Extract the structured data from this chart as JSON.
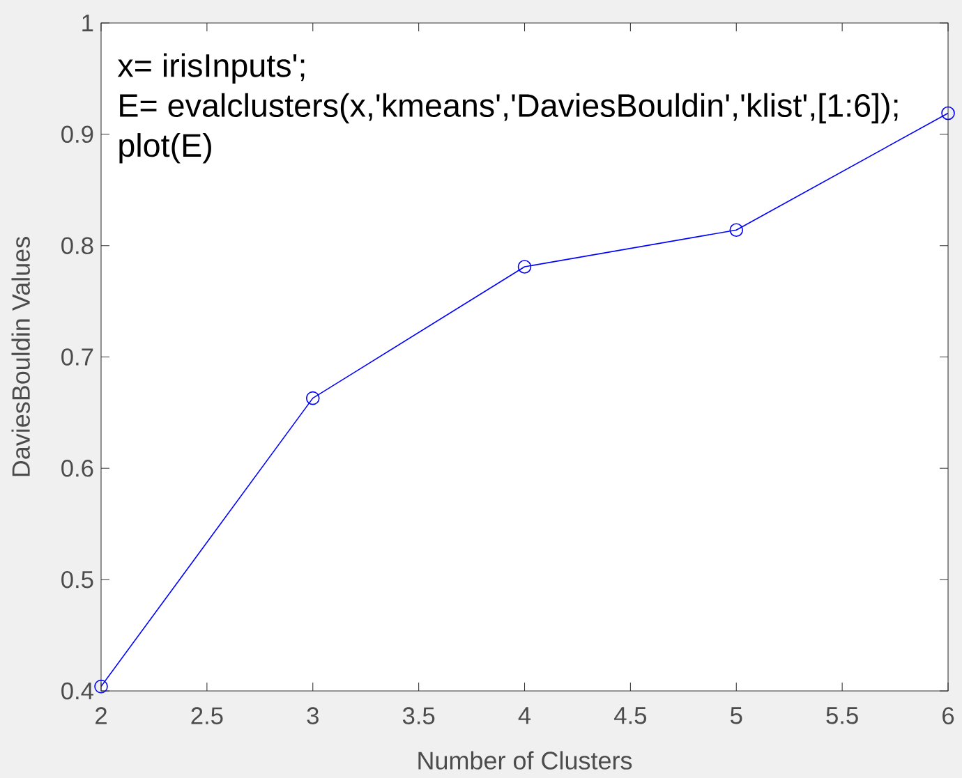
{
  "chart_data": {
    "type": "line",
    "xlabel": "Number of Clusters",
    "ylabel": "DaviesBouldin Values",
    "x": [
      2,
      3,
      4,
      5,
      6
    ],
    "series": [
      {
        "color": "#0000ff",
        "values": [
          0.404,
          0.663,
          0.781,
          0.814,
          0.919
        ]
      }
    ],
    "xlim": [
      2,
      6
    ],
    "xticks": [
      2,
      2.5,
      3,
      3.5,
      4,
      4.5,
      5,
      5.5,
      6
    ],
    "ylim": [
      0.4,
      1
    ],
    "yticks": [
      0.4,
      0.5,
      0.6,
      0.7,
      0.8,
      0.9,
      1
    ],
    "marker": "circle",
    "line_style": "solid",
    "grid": false,
    "annotations": [
      "x= irisInputs';",
      "E= evalclusters(x,'kmeans','DaviesBouldin','klist',[1:6]);",
      "plot(E)"
    ]
  }
}
